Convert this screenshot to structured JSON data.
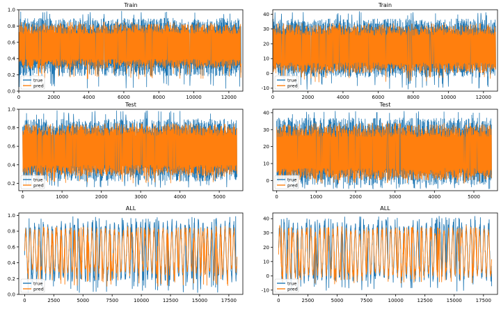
{
  "chart_data": [
    {
      "type": "line",
      "title": "Train",
      "xlim": [
        0,
        12800
      ],
      "ylim": [
        0.0,
        1.0
      ],
      "xticks": [
        0,
        2000,
        4000,
        6000,
        8000,
        10000,
        12000
      ],
      "xtick_labels": [
        "0",
        "2000",
        "4000",
        "6000",
        "8000",
        "10000",
        "12000"
      ],
      "yticks": [
        0.0,
        0.2,
        0.4,
        0.6,
        0.8,
        1.0
      ],
      "ytick_labels": [
        "0.0",
        "0.2",
        "0.4",
        "0.6",
        "0.8",
        "1.0"
      ],
      "legend": "lower-left",
      "series": [
        {
          "name": "true",
          "color": "#1f77b4",
          "n": 12700,
          "min": 0.02,
          "max": 0.99,
          "band": [
            0.18,
            0.9
          ]
        },
        {
          "name": "pred",
          "color": "#ff7f0e",
          "n": 12700,
          "min": 0.14,
          "max": 0.85,
          "band": [
            0.27,
            0.83
          ]
        }
      ]
    },
    {
      "type": "line",
      "title": "Train",
      "xlim": [
        0,
        12800
      ],
      "ylim": [
        -12,
        43
      ],
      "xticks": [
        0,
        2000,
        4000,
        6000,
        8000,
        10000,
        12000
      ],
      "xtick_labels": [
        "0",
        "2000",
        "4000",
        "6000",
        "8000",
        "10000",
        "12000"
      ],
      "yticks": [
        -10,
        0,
        10,
        20,
        30,
        40
      ],
      "ytick_labels": [
        "-10",
        "0",
        "10",
        "20",
        "30",
        "40"
      ],
      "legend": "lower-left",
      "series": [
        {
          "name": "true",
          "color": "#1f77b4",
          "n": 12700,
          "min": -11,
          "max": 42,
          "band": [
            -3,
            37
          ]
        },
        {
          "name": "pred",
          "color": "#ff7f0e",
          "n": 12700,
          "min": -6,
          "max": 34,
          "band": [
            0,
            33
          ]
        }
      ]
    },
    {
      "type": "line",
      "title": "Test",
      "xlim": [
        -100,
        5600
      ],
      "ylim": [
        0.12,
        1.0
      ],
      "xticks": [
        0,
        1000,
        2000,
        3000,
        4000,
        5000
      ],
      "xtick_labels": [
        "0",
        "1000",
        "2000",
        "3000",
        "4000",
        "5000"
      ],
      "yticks": [
        0.2,
        0.4,
        0.6,
        0.8,
        1.0
      ],
      "ytick_labels": [
        "0.2",
        "0.4",
        "0.6",
        "0.8",
        "1.0"
      ],
      "legend": "lower-left",
      "series": [
        {
          "name": "true",
          "color": "#1f77b4",
          "n": 5450,
          "min": 0.15,
          "max": 0.99,
          "band": [
            0.22,
            0.9
          ]
        },
        {
          "name": "pred",
          "color": "#ff7f0e",
          "n": 5450,
          "min": 0.2,
          "max": 0.85,
          "band": [
            0.27,
            0.84
          ]
        }
      ]
    },
    {
      "type": "line",
      "title": "Test",
      "xlim": [
        -100,
        5600
      ],
      "ylim": [
        -6,
        42
      ],
      "xticks": [
        0,
        1000,
        2000,
        3000,
        4000,
        5000
      ],
      "xtick_labels": [
        "0",
        "1000",
        "2000",
        "3000",
        "4000",
        "5000"
      ],
      "yticks": [
        0,
        10,
        20,
        30,
        40
      ],
      "ytick_labels": [
        "0",
        "10",
        "20",
        "30",
        "40"
      ],
      "legend": "lower-left",
      "series": [
        {
          "name": "true",
          "color": "#1f77b4",
          "n": 5450,
          "min": -5,
          "max": 41,
          "band": [
            -3,
            37
          ]
        },
        {
          "name": "pred",
          "color": "#ff7f0e",
          "n": 5450,
          "min": -2,
          "max": 34,
          "band": [
            0,
            33
          ]
        }
      ]
    },
    {
      "type": "line",
      "title": "ALL",
      "xlim": [
        -500,
        18700
      ],
      "ylim": [
        0.0,
        1.03
      ],
      "xticks": [
        0,
        2500,
        5000,
        7500,
        10000,
        12500,
        15000,
        17500
      ],
      "xtick_labels": [
        "0",
        "2500",
        "5000",
        "7500",
        "10000",
        "12500",
        "15000",
        "17500"
      ],
      "yticks": [
        0.0,
        0.2,
        0.4,
        0.6,
        0.8,
        1.0
      ],
      "ytick_labels": [
        "0.0",
        "0.2",
        "0.4",
        "0.6",
        "0.8",
        "1.0"
      ],
      "legend": "lower-left",
      "series": [
        {
          "name": "true",
          "color": "#1f77b4",
          "n": 18200,
          "min": 0.02,
          "max": 0.99,
          "band": [
            0.18,
            0.9
          ]
        },
        {
          "name": "pred",
          "color": "#ff7f0e",
          "n": 18200,
          "min": 0.1,
          "max": 0.85,
          "band": [
            0.27,
            0.83
          ]
        }
      ]
    },
    {
      "type": "line",
      "title": "ALL",
      "xlim": [
        -500,
        18700
      ],
      "ylim": [
        -13,
        44
      ],
      "xticks": [
        0,
        2500,
        5000,
        7500,
        10000,
        12500,
        15000,
        17500
      ],
      "xtick_labels": [
        "0",
        "2500",
        "5000",
        "7500",
        "10000",
        "12500",
        "15000",
        "17500"
      ],
      "yticks": [
        -10,
        0,
        10,
        20,
        30,
        40
      ],
      "ytick_labels": [
        "-10",
        "0",
        "10",
        "20",
        "30",
        "40"
      ],
      "legend": "lower-left",
      "series": [
        {
          "name": "true",
          "color": "#1f77b4",
          "n": 18200,
          "min": -11,
          "max": 42,
          "band": [
            -3,
            37
          ]
        },
        {
          "name": "pred",
          "color": "#ff7f0e",
          "n": 18200,
          "min": -6,
          "max": 34,
          "band": [
            0,
            33
          ]
        }
      ]
    }
  ]
}
